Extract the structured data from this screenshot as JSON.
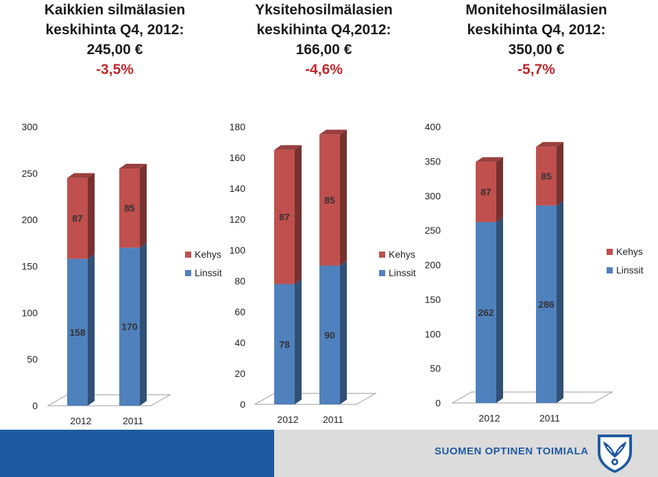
{
  "headings": [
    {
      "title": "Kaikkien silmälasien",
      "period": "keskihinta Q4, 2012:",
      "price": "245,00 €",
      "change": "-3,5%"
    },
    {
      "title": "Yksitehosilmälasien",
      "period": "keskihinta Q4,2012:",
      "price": "166,00 €",
      "change": "-4,6%"
    },
    {
      "title": "Monitehosilmälasien",
      "period": "keskihinta Q4, 2012:",
      "price": "350,00 €",
      "change": "-5,7%"
    }
  ],
  "footer": {
    "brand": "SUOMEN OPTINEN TOIMIALA"
  },
  "colors": {
    "linssit": "#4f81bd",
    "kehys": "#c0504d",
    "change": "#c0282c",
    "footer_blue": "#1f5aa0",
    "footer_grey": "#dcdcdc"
  },
  "chart_data": [
    {
      "type": "bar",
      "stacked": true,
      "three_d": true,
      "categories": [
        "2012",
        "2011"
      ],
      "series": [
        {
          "name": "Linssit",
          "values": [
            158,
            170
          ]
        },
        {
          "name": "Kehys",
          "values": [
            87,
            85
          ]
        }
      ],
      "ylim": [
        0,
        300
      ],
      "yticks": [
        0,
        50,
        100,
        150,
        200,
        250,
        300
      ],
      "legend": "right"
    },
    {
      "type": "bar",
      "stacked": true,
      "three_d": true,
      "categories": [
        "2012",
        "2011"
      ],
      "series": [
        {
          "name": "Linssit",
          "values": [
            78,
            90
          ]
        },
        {
          "name": "Kehys",
          "values": [
            87,
            85
          ]
        }
      ],
      "ylim": [
        0,
        180
      ],
      "yticks": [
        0,
        20,
        40,
        60,
        80,
        100,
        120,
        140,
        160,
        180
      ],
      "legend": "right"
    },
    {
      "type": "bar",
      "stacked": true,
      "three_d": true,
      "categories": [
        "2012",
        "2011"
      ],
      "series": [
        {
          "name": "Linssit",
          "values": [
            262,
            286
          ]
        },
        {
          "name": "Kehys",
          "values": [
            87,
            85
          ]
        }
      ],
      "ylim": [
        0,
        400
      ],
      "yticks": [
        0,
        50,
        100,
        150,
        200,
        250,
        300,
        350,
        400
      ],
      "legend": "right"
    }
  ]
}
